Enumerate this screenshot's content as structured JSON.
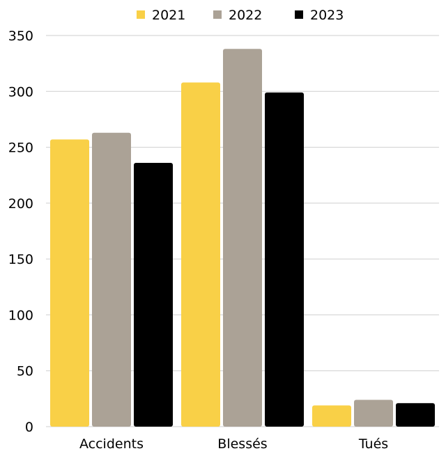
{
  "chart_data": {
    "type": "bar",
    "categories": [
      "Accidents",
      "Blessés",
      "Tués"
    ],
    "series": [
      {
        "name": "2021",
        "color": "#F9D047",
        "values": [
          257,
          308,
          19
        ]
      },
      {
        "name": "2022",
        "color": "#ABA296",
        "values": [
          263,
          338,
          24
        ]
      },
      {
        "name": "2023",
        "color": "#000000",
        "values": [
          236,
          299,
          21
        ]
      }
    ],
    "y_ticks": [
      "0",
      "50",
      "100",
      "150",
      "200",
      "250",
      "300",
      "350"
    ],
    "ylim": [
      0,
      350
    ],
    "grid": true,
    "legend_position": "top-center"
  }
}
